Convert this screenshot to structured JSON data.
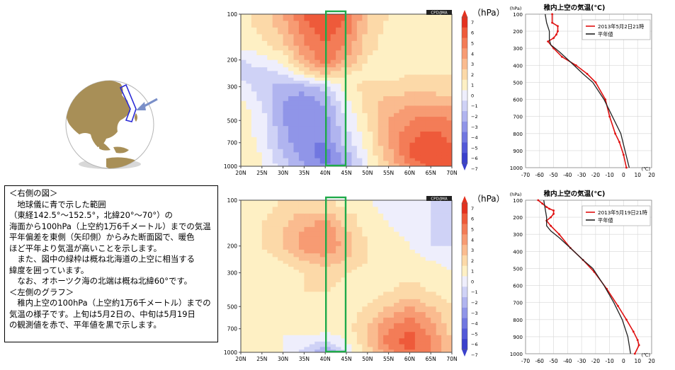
{
  "note": {
    "lines": [
      "＜右側の図＞",
      "　地球儀に青で示した範囲",
      "（東経142.5°～152.5°，北緯20°～70°）の",
      "海面から100hPa（上空約1万6千メートル）までの気温",
      "平年偏差を東側（矢印側）からみた断面図で、暖色",
      "ほど平年より気温が高いことを示します。",
      "　また、図中の緑枠は概ね北海道の上空に相当する",
      "緯度を囲っています。",
      "　なお、オホーツク海の北端は概ね北緯60°です。",
      "＜左側のグラフ＞",
      "　稚内上空の100hPa（上空約1万6千メートル）までの",
      "気温の様子です。上旬は5月2日の、中旬は5月19日",
      "の観測値を赤で、平年値を黒で示します。"
    ]
  },
  "colors": {
    "warm": "#e8452f",
    "cold": "#4f55d8",
    "highlight_box": "#1faa4a",
    "observed": "#e01010",
    "normal": "#222222",
    "globe_land": "#a88f57",
    "globe_sea": "#ffffff"
  },
  "chart_data": [
    {
      "type": "heatmap",
      "credit": "CPD/JMA",
      "colorbar_unit": "（hPa）",
      "colorbar_ticks": [
        "7",
        "6",
        "5",
        "4",
        "3",
        "2",
        "1",
        "0",
        "−1",
        "−2",
        "−3",
        "−4",
        "−5",
        "−6",
        "−7"
      ],
      "x_ticks": [
        "20N",
        "25N",
        "30N",
        "35N",
        "40N",
        "45N",
        "50N",
        "55N",
        "60N",
        "65N",
        "70N"
      ],
      "y_ticks": [
        "100",
        "200",
        "300",
        "500",
        "700",
        "1000"
      ],
      "y_scale": "log",
      "highlight_lat_range": [
        40,
        45
      ],
      "anomaly_grid": {
        "lats": [
          20,
          25,
          30,
          35,
          40,
          45,
          50,
          55,
          60,
          65,
          70
        ],
        "levels": [
          100,
          150,
          200,
          250,
          300,
          400,
          500,
          700,
          850,
          1000
        ],
        "values": [
          [
            0.5,
            1.5,
            3.0,
            5.0,
            6.0,
            5.0,
            2.0,
            1.0,
            0.5,
            0.5,
            0.5
          ],
          [
            0.5,
            1.0,
            2.0,
            4.0,
            5.0,
            4.0,
            1.5,
            0.5,
            0.0,
            0.5,
            0.5
          ],
          [
            -1.0,
            -0.5,
            0.5,
            3.0,
            5.0,
            3.0,
            1.0,
            0.5,
            0.5,
            0.0,
            0.5
          ],
          [
            -1.5,
            -1.5,
            -1.0,
            0.5,
            2.0,
            1.0,
            0.5,
            0.5,
            1.0,
            1.0,
            1.0
          ],
          [
            -0.5,
            -1.5,
            -2.5,
            -2.5,
            -1.5,
            0.5,
            1.5,
            1.5,
            1.5,
            1.5,
            1.0
          ],
          [
            0.5,
            -1.0,
            -3.0,
            -4.0,
            -3.0,
            -0.5,
            1.5,
            2.5,
            3.0,
            3.0,
            3.0
          ],
          [
            0.5,
            -0.5,
            -3.0,
            -4.0,
            -3.5,
            -1.0,
            1.0,
            3.0,
            4.0,
            4.5,
            4.0
          ],
          [
            1.0,
            -0.5,
            -2.5,
            -4.0,
            -4.0,
            -1.5,
            0.5,
            3.0,
            5.0,
            6.0,
            5.0
          ],
          [
            1.0,
            0.0,
            -2.0,
            -3.5,
            -4.5,
            -2.5,
            0.0,
            2.5,
            5.0,
            6.0,
            5.5
          ],
          [
            1.0,
            0.0,
            -1.5,
            -3.0,
            -4.0,
            -3.0,
            0.0,
            2.0,
            4.0,
            5.0,
            5.0
          ]
        ]
      }
    },
    {
      "type": "heatmap",
      "credit": "CPD/JMA",
      "colorbar_unit": "（hPa）",
      "colorbar_ticks": [
        "7",
        "6",
        "5",
        "4",
        "3",
        "2",
        "1",
        "0",
        "−1",
        "−2",
        "−3",
        "−4",
        "−5",
        "−6",
        "−7"
      ],
      "x_ticks": [
        "20N",
        "25N",
        "30N",
        "35N",
        "40N",
        "45N",
        "50N",
        "55N",
        "60N",
        "65N",
        "70N"
      ],
      "y_ticks": [
        "100",
        "200",
        "300",
        "500",
        "700",
        "1000"
      ],
      "y_scale": "log",
      "highlight_lat_range": [
        40,
        45
      ],
      "anomaly_grid": {
        "lats": [
          20,
          25,
          30,
          35,
          40,
          45,
          50,
          55,
          60,
          65,
          70
        ],
        "levels": [
          100,
          150,
          200,
          250,
          300,
          400,
          500,
          700,
          850,
          1000
        ],
        "values": [
          [
            0.5,
            0.5,
            1.0,
            1.0,
            1.0,
            0.5,
            0.0,
            -0.5,
            -0.5,
            -1.0,
            -1.0
          ],
          [
            0.5,
            1.0,
            2.0,
            3.0,
            3.5,
            2.0,
            0.5,
            0.0,
            -0.5,
            -1.0,
            -1.5
          ],
          [
            0.5,
            1.0,
            2.0,
            3.5,
            4.0,
            2.5,
            1.0,
            0.5,
            0.0,
            -1.0,
            -1.0
          ],
          [
            0.5,
            0.5,
            1.0,
            2.0,
            2.5,
            2.0,
            1.0,
            0.5,
            0.5,
            0.0,
            -0.5
          ],
          [
            0.5,
            0.5,
            0.5,
            1.0,
            1.5,
            1.0,
            0.5,
            0.5,
            0.5,
            0.5,
            0.0
          ],
          [
            0.5,
            0.5,
            0.5,
            1.0,
            1.0,
            0.5,
            0.5,
            1.0,
            1.5,
            1.0,
            0.5
          ],
          [
            0.5,
            0.0,
            0.0,
            0.5,
            0.5,
            0.5,
            1.0,
            2.0,
            3.0,
            2.0,
            1.0
          ],
          [
            0.5,
            0.0,
            0.0,
            0.5,
            0.5,
            0.5,
            2.0,
            4.0,
            5.0,
            3.5,
            1.5
          ],
          [
            0.5,
            0.0,
            0.0,
            -0.5,
            -1.0,
            0.0,
            2.0,
            4.5,
            5.5,
            4.0,
            2.0
          ],
          [
            0.5,
            0.0,
            0.0,
            -1.5,
            -3.0,
            -1.0,
            1.5,
            3.5,
            5.0,
            4.0,
            2.0
          ]
        ]
      }
    },
    {
      "type": "line",
      "title": "稚内上空の気温(℃)",
      "xlabel": "(℃)",
      "ylabel": "(hPa)",
      "xlim": [
        -70,
        20
      ],
      "x_ticks": [
        -70,
        -60,
        -50,
        -40,
        -30,
        -20,
        -10,
        0,
        10,
        20
      ],
      "y_ticks": [
        100,
        200,
        300,
        400,
        500,
        600,
        700,
        800,
        900,
        1000
      ],
      "legend_position": "top-right",
      "series": [
        {
          "name": "2013年5月2日21時",
          "x": [
            -51,
            -51,
            -47,
            -47,
            -48,
            -50,
            -54,
            -50,
            -44,
            -34,
            -26,
            -20,
            -13,
            -10,
            -6,
            -3,
            0,
            2
          ],
          "y": [
            100,
            150,
            170,
            200,
            220,
            240,
            260,
            300,
            350,
            400,
            450,
            500,
            600,
            700,
            800,
            850,
            925,
            1000
          ]
        },
        {
          "name": "平年値",
          "x": [
            -56,
            -55,
            -53,
            -53,
            -52,
            -46,
            -38,
            -29,
            -22,
            -14,
            -8,
            -2,
            1,
            4
          ],
          "y": [
            100,
            150,
            200,
            250,
            280,
            320,
            380,
            450,
            500,
            600,
            700,
            800,
            900,
            1000
          ]
        }
      ]
    },
    {
      "type": "line",
      "title": "稚内上空の気温(℃)",
      "xlabel": "(℃)",
      "ylabel": "(hPa)",
      "xlim": [
        -70,
        20
      ],
      "x_ticks": [
        -70,
        -60,
        -50,
        -40,
        -30,
        -20,
        -10,
        0,
        10,
        20
      ],
      "y_ticks": [
        100,
        200,
        300,
        400,
        500,
        600,
        700,
        800,
        900,
        1000
      ],
      "legend_position": "top-right",
      "series": [
        {
          "name": "2013年5月19日21時",
          "x": [
            -61,
            -58,
            -55,
            -53,
            -50,
            -50,
            -52,
            -55,
            -52,
            -46,
            -38,
            -29,
            -21,
            -12,
            -4,
            2,
            7,
            10,
            11,
            8
          ],
          "y": [
            100,
            120,
            140,
            150,
            160,
            180,
            200,
            220,
            250,
            300,
            380,
            450,
            520,
            620,
            720,
            800,
            870,
            920,
            950,
            1000
          ]
        },
        {
          "name": "平年値",
          "x": [
            -57,
            -56,
            -55,
            -55,
            -52,
            -46,
            -38,
            -29,
            -22,
            -14,
            -7,
            -1,
            3,
            5
          ],
          "y": [
            100,
            150,
            200,
            250,
            280,
            320,
            380,
            450,
            500,
            600,
            700,
            800,
            900,
            1000
          ]
        }
      ]
    }
  ]
}
